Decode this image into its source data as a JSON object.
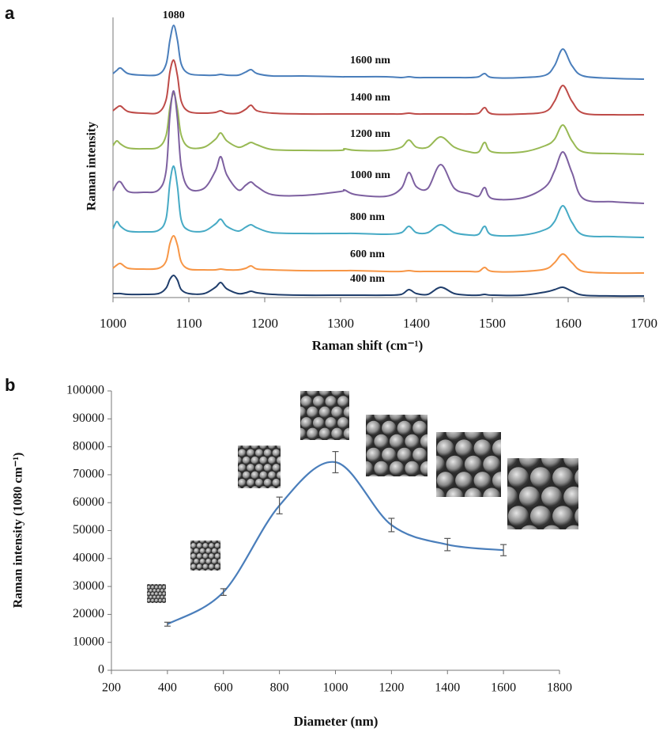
{
  "chart_data": [
    {
      "type": "line",
      "panel_label": "a",
      "x_label": "Raman shift (cm⁻¹)",
      "y_label": "Raman intensity",
      "peak_label": "1080",
      "x": [
        1000,
        1005,
        1010,
        1020,
        1040,
        1060,
        1070,
        1075,
        1080,
        1085,
        1090,
        1100,
        1120,
        1135,
        1142,
        1150,
        1165,
        1175,
        1182,
        1190,
        1210,
        1250,
        1300,
        1305,
        1320,
        1360,
        1380,
        1390,
        1400,
        1415,
        1432,
        1450,
        1470,
        1482,
        1490,
        1500,
        1540,
        1570,
        1582,
        1593,
        1605,
        1620,
        1660,
        1700
      ],
      "xlim": [
        1000,
        1700
      ],
      "xticks": [
        1000,
        1100,
        1200,
        1300,
        1400,
        1500,
        1600,
        1700
      ],
      "ylim": [
        0,
        354
      ],
      "series": [
        {
          "name": "1600 nm",
          "color": "#4a7ebb",
          "values": [
            283,
            287,
            290,
            283,
            281,
            282,
            295,
            325,
            344,
            325,
            295,
            283,
            281,
            281,
            282,
            281,
            281,
            285,
            288,
            283,
            280,
            280,
            279,
            279,
            279,
            279,
            278,
            279,
            278,
            278,
            278,
            278,
            278,
            279,
            283,
            278,
            278,
            281,
            293,
            314,
            293,
            280,
            277,
            276
          ]
        },
        {
          "name": "1400 nm",
          "color": "#be4b48",
          "values": [
            236,
            240,
            242,
            235,
            233,
            234,
            250,
            285,
            300,
            280,
            248,
            235,
            233,
            234,
            236,
            233,
            233,
            238,
            243,
            236,
            233,
            232,
            232,
            232,
            232,
            232,
            232,
            233,
            232,
            232,
            232,
            232,
            232,
            233,
            240,
            232,
            232,
            235,
            248,
            268,
            248,
            233,
            231,
            231
          ]
        },
        {
          "name": "1200 nm",
          "color": "#98b954",
          "values": [
            192,
            198,
            194,
            189,
            188,
            190,
            205,
            240,
            258,
            238,
            205,
            190,
            190,
            200,
            208,
            198,
            190,
            193,
            196,
            193,
            187,
            186,
            186,
            188,
            186,
            186,
            190,
            199,
            190,
            190,
            203,
            190,
            184,
            184,
            196,
            184,
            184,
            192,
            200,
            218,
            198,
            184,
            182,
            181
          ]
        },
        {
          "name": "1000 nm",
          "color": "#7d60a0",
          "values": [
            135,
            144,
            146,
            134,
            133,
            136,
            160,
            230,
            261,
            225,
            165,
            138,
            138,
            160,
            178,
            155,
            136,
            142,
            146,
            140,
            130,
            129,
            134,
            136,
            130,
            128,
            138,
            158,
            140,
            138,
            168,
            138,
            131,
            128,
            139,
            125,
            126,
            140,
            160,
            184,
            158,
            125,
            121,
            119
          ]
        },
        {
          "name": "800 nm",
          "color": "#46aac5",
          "values": [
            87,
            96,
            90,
            84,
            83,
            85,
            100,
            145,
            166,
            140,
            98,
            85,
            84,
            93,
            99,
            90,
            84,
            89,
            92,
            88,
            82,
            81,
            81,
            81,
            81,
            80,
            82,
            90,
            82,
            82,
            92,
            82,
            79,
            80,
            90,
            79,
            79,
            86,
            96,
            116,
            95,
            79,
            77,
            76
          ]
        },
        {
          "name": "600 nm",
          "color": "#f79646",
          "values": [
            37,
            41,
            43,
            37,
            36,
            37,
            46,
            68,
            78,
            66,
            45,
            36,
            35,
            35,
            36,
            35,
            35,
            37,
            40,
            36,
            35,
            34,
            34,
            34,
            34,
            33,
            33,
            34,
            33,
            33,
            33,
            33,
            33,
            33,
            38,
            33,
            33,
            36,
            44,
            55,
            44,
            33,
            31,
            31
          ]
        },
        {
          "name": "400 nm",
          "color": "#1f3d6b",
          "values": [
            5,
            5,
            5,
            4,
            4,
            5,
            12,
            23,
            28,
            22,
            10,
            5,
            5,
            13,
            19,
            11,
            5,
            6,
            8,
            6,
            4,
            3,
            3,
            3,
            3,
            3,
            4,
            10,
            5,
            4,
            13,
            5,
            3,
            3,
            4,
            3,
            3,
            7,
            10,
            13,
            8,
            3,
            2,
            2
          ]
        }
      ]
    },
    {
      "type": "line",
      "panel_label": "b",
      "x_label": "Diameter (nm)",
      "y_label": "Raman intensity (1080 cm⁻¹)",
      "x": [
        400,
        600,
        800,
        1000,
        1200,
        1400,
        1600
      ],
      "values": [
        16500,
        28000,
        59000,
        74500,
        52000,
        45000,
        43000
      ],
      "errors": [
        700,
        1200,
        3000,
        3800,
        2400,
        2200,
        2000
      ],
      "color": "#4a7ebb",
      "xlim": [
        200,
        1800
      ],
      "xticks": [
        200,
        400,
        600,
        800,
        1000,
        1200,
        1400,
        1600,
        1800
      ],
      "ylim": [
        0,
        100000
      ],
      "yticks": [
        0,
        10000,
        20000,
        30000,
        40000,
        50000,
        60000,
        70000,
        80000,
        90000,
        100000
      ]
    }
  ]
}
